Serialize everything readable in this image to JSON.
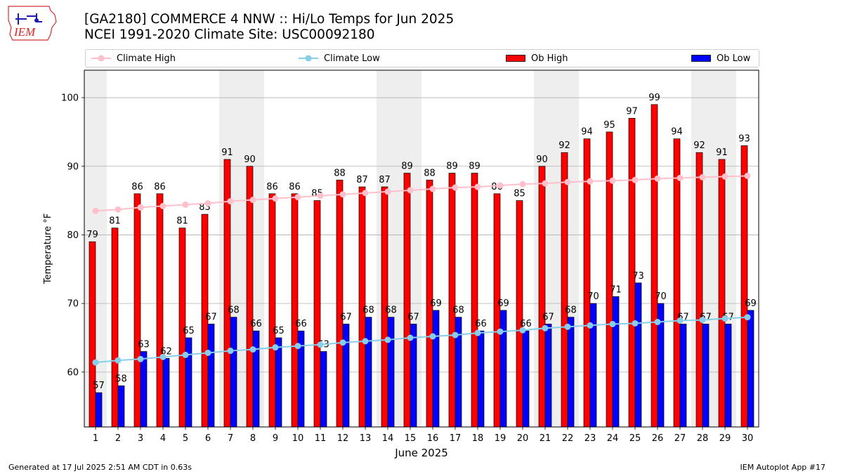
{
  "header": {
    "title_line1": "[GA2180] COMMERCE 4 NNW :: Hi/Lo Temps for Jun 2025",
    "title_line2": "NCEI 1991-2020 Climate Site: USC00092180",
    "logo_text": "IEM"
  },
  "legend": {
    "climate_high": "Climate High",
    "climate_low": "Climate Low",
    "ob_high": "Ob High",
    "ob_low": "Ob Low"
  },
  "footer": {
    "generated": "Generated at 17 Jul 2025 2:51 AM CDT in 0.63s",
    "app": "IEM Autoplot App #17"
  },
  "colors": {
    "ob_high": "#ff0000",
    "ob_low": "#0000ff",
    "climate_high": "#ffc0cb",
    "climate_low": "#87ceeb",
    "weekend_band": "#eeeeee",
    "grid": "#b0b0b0"
  },
  "chart_data": {
    "type": "bar",
    "xlabel": "June 2025",
    "ylabel": "Temperature °F",
    "ylim": [
      52,
      104
    ],
    "yticks": [
      60,
      70,
      80,
      90,
      100
    ],
    "grid": "horizontal",
    "legend_placement": "top",
    "categories": [
      "1",
      "2",
      "3",
      "4",
      "5",
      "6",
      "7",
      "8",
      "9",
      "10",
      "11",
      "12",
      "13",
      "14",
      "15",
      "16",
      "17",
      "18",
      "19",
      "20",
      "21",
      "22",
      "23",
      "24",
      "25",
      "26",
      "27",
      "28",
      "29",
      "30"
    ],
    "weekend_days": [
      1,
      7,
      8,
      14,
      15,
      21,
      22,
      28,
      29
    ],
    "series": [
      {
        "name": "Ob High",
        "kind": "bar",
        "values": [
          79,
          81,
          86,
          86,
          81,
          83,
          91,
          90,
          86,
          86,
          85,
          88,
          87,
          87,
          89,
          88,
          89,
          89,
          86,
          85,
          90,
          92,
          94,
          95,
          97,
          99,
          94,
          92,
          91,
          93
        ]
      },
      {
        "name": "Ob Low",
        "kind": "bar",
        "values": [
          57,
          58,
          63,
          62,
          65,
          67,
          68,
          66,
          65,
          66,
          63,
          67,
          68,
          68,
          67,
          69,
          68,
          66,
          69,
          66,
          67,
          68,
          70,
          71,
          73,
          70,
          67,
          67,
          67,
          69
        ]
      },
      {
        "name": "Climate High",
        "kind": "line",
        "values": [
          83.5,
          83.7,
          84.0,
          84.2,
          84.4,
          84.6,
          84.9,
          85.1,
          85.3,
          85.5,
          85.7,
          85.9,
          86.1,
          86.3,
          86.5,
          86.7,
          86.9,
          87.0,
          87.2,
          87.4,
          87.5,
          87.7,
          87.8,
          87.9,
          88.0,
          88.2,
          88.3,
          88.4,
          88.5,
          88.6
        ]
      },
      {
        "name": "Climate Low",
        "kind": "line",
        "values": [
          61.4,
          61.7,
          61.9,
          62.2,
          62.5,
          62.8,
          63.1,
          63.3,
          63.6,
          63.8,
          64.0,
          64.3,
          64.5,
          64.7,
          65.0,
          65.2,
          65.4,
          65.7,
          65.9,
          66.1,
          66.4,
          66.6,
          66.8,
          67.0,
          67.1,
          67.3,
          67.5,
          67.6,
          67.8,
          68.0
        ]
      }
    ]
  }
}
